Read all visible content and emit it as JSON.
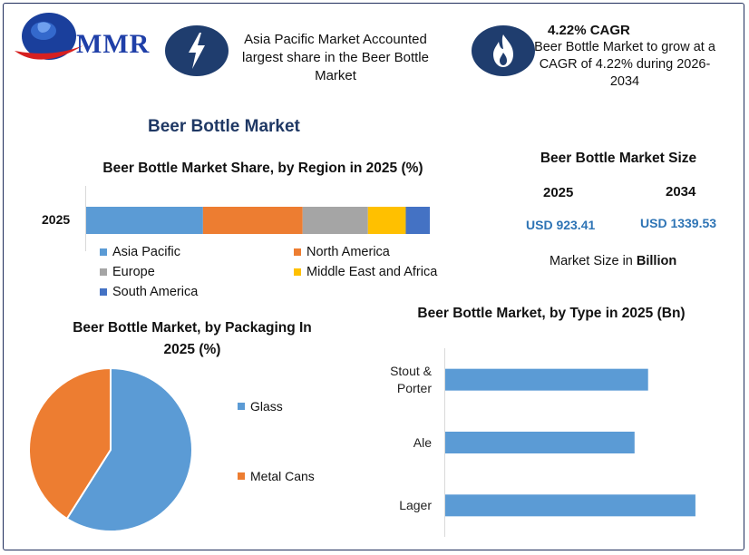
{
  "header": {
    "logo_text": "MMR",
    "info1_text": "Asia Pacific Market Accounted largest share in the Beer Bottle Market",
    "info2_title": "4.22% CAGR",
    "info2_text": "Beer Bottle Market to grow at a CAGR of 4.22% during 2026-2034",
    "info1_icon": "lightning-bolt-icon",
    "info2_icon": "flame-icon"
  },
  "main_title": "Beer Bottle Market",
  "market_size": {
    "title": "Beer Bottle Market Size",
    "year1": "2025",
    "value1": "USD 923.41",
    "year2": "2034",
    "value2": "USD 1339.53",
    "note_prefix": "Market Size in ",
    "note_bold": "Billion"
  },
  "colors": {
    "asia_pacific": "#5b9bd5",
    "north_america": "#ed7d31",
    "europe": "#a5a5a5",
    "middle_east_africa": "#ffc000",
    "south_america": "#4472c4",
    "accent_blue": "#2e74b5",
    "icon_bg": "#1f3d6e"
  },
  "chart_data": [
    {
      "type": "bar",
      "orientation": "horizontal-stacked",
      "title": "Beer Bottle Market Share, by Region in 2025 (%)",
      "categories": [
        "2025"
      ],
      "series": [
        {
          "name": "Asia Pacific",
          "values": [
            34
          ]
        },
        {
          "name": "North America",
          "values": [
            29
          ]
        },
        {
          "name": "Europe",
          "values": [
            19
          ]
        },
        {
          "name": "Middle East and Africa",
          "values": [
            11
          ]
        },
        {
          "name": "South America",
          "values": [
            7
          ]
        }
      ],
      "legend_position": "bottom"
    },
    {
      "type": "pie",
      "title": "Beer Bottle Market, by Packaging In 2025 (%)",
      "labels": [
        "Glass",
        "Metal Cans"
      ],
      "values": [
        59,
        41
      ],
      "colors": [
        "#5b9bd5",
        "#ed7d31"
      ],
      "legend_position": "right"
    },
    {
      "type": "bar",
      "orientation": "horizontal",
      "title": "Beer Bottle Market, by Type in 2025 (Bn)",
      "categories": [
        "Stout & Porter",
        "Ale",
        "Lager"
      ],
      "values": [
        270,
        252,
        333
      ],
      "xlim": [
        0,
        350
      ],
      "grid": false
    }
  ]
}
